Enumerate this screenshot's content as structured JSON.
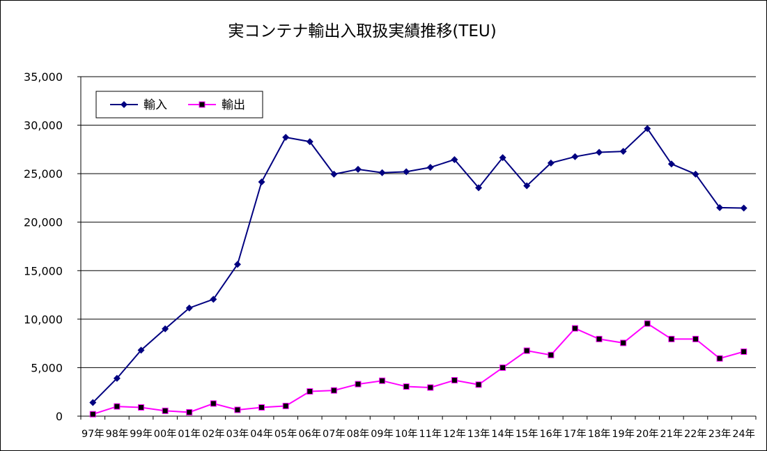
{
  "chart_data": {
    "type": "line",
    "title": "実コンテナ輸出入取扱実績推移(TEU)",
    "xlabel": "",
    "ylabel": "",
    "ylim": [
      0,
      35000
    ],
    "yticks": [
      "35,000",
      "30,000",
      "25,000",
      "20,000",
      "15,000",
      "10,000",
      "5,000",
      "0"
    ],
    "ytick_values": [
      35000,
      30000,
      25000,
      20000,
      15000,
      10000,
      5000,
      0
    ],
    "grid": true,
    "legend_position": "top-left",
    "categories": [
      "97年",
      "98年",
      "99年",
      "00年",
      "01年",
      "02年",
      "03年",
      "04年",
      "05年",
      "06年",
      "07年",
      "08年",
      "09年",
      "10年",
      "11年",
      "12年",
      "13年",
      "14年",
      "15年",
      "16年",
      "17年",
      "18年",
      "19年",
      "20年",
      "21年",
      "22年",
      "23年",
      "24年"
    ],
    "series": [
      {
        "name": "輸入",
        "color": "#000080",
        "marker": "diamond",
        "values": [
          1400,
          3900,
          6800,
          9000,
          11150,
          12050,
          15650,
          24150,
          28750,
          28300,
          24950,
          25450,
          25100,
          25200,
          25650,
          26450,
          23550,
          26650,
          23750,
          26100,
          26750,
          27200,
          27300,
          29650,
          26000,
          24950,
          21500,
          21450
        ]
      },
      {
        "name": "輸出",
        "color": "#FF00FF",
        "marker": "square",
        "values": [
          200,
          1000,
          900,
          550,
          400,
          1300,
          650,
          900,
          1050,
          2550,
          2650,
          3300,
          3650,
          3050,
          2950,
          3700,
          3250,
          5000,
          6750,
          6300,
          9050,
          7950,
          7550,
          9550,
          7950,
          7950,
          5950,
          6650
        ]
      }
    ]
  }
}
